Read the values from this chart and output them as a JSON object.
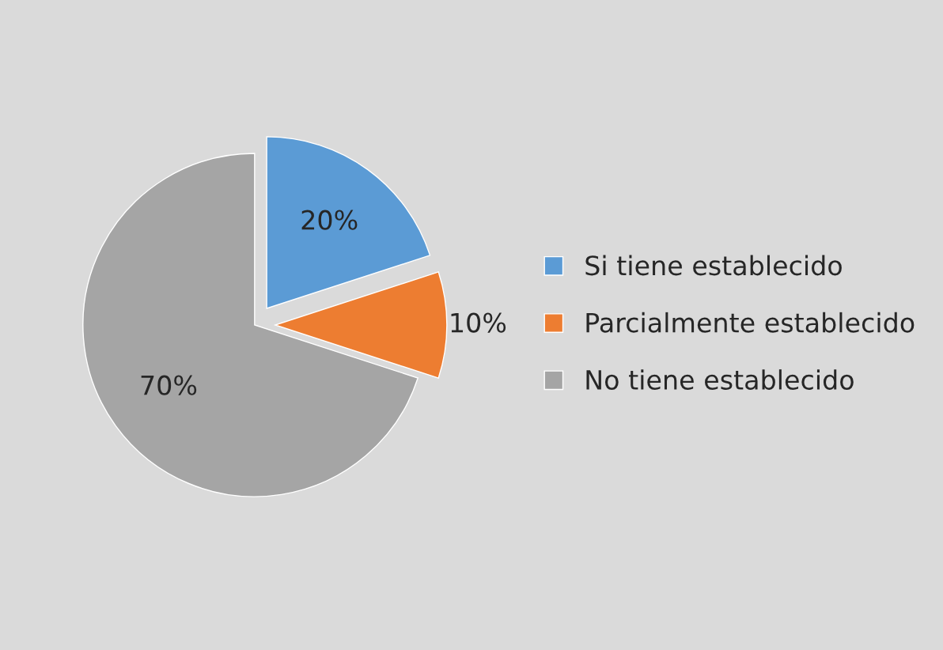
{
  "chart_data": {
    "type": "pie",
    "categories": [
      "Si tiene establecido",
      "Parcialmente establecido",
      "No tiene establecido"
    ],
    "values": [
      20,
      10,
      70
    ],
    "colors": [
      "#5b9bd5",
      "#ed7d31",
      "#a5a5a5"
    ],
    "value_labels": [
      "20%",
      "10%",
      "70%"
    ],
    "legend": "right"
  }
}
